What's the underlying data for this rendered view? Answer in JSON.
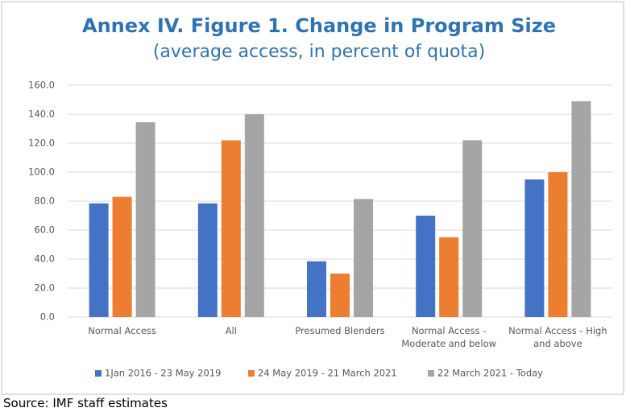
{
  "chart_data": {
    "type": "bar",
    "title": "Annex IV. Figure 1. Change in Program Size",
    "subtitle": "(average access, in percent of quota)",
    "categories": [
      "Normal Access",
      "All",
      "Presumed Blenders",
      "Normal Access - Moderate and below",
      "Normal Access - High and above"
    ],
    "series": [
      {
        "name": "1Jan 2016 - 23 May 2019",
        "color": "#4472c4",
        "values": [
          78.5,
          78.5,
          38.5,
          70,
          95
        ]
      },
      {
        "name": "24 May 2019 - 21 March 2021",
        "color": "#ed7d31",
        "values": [
          83,
          122,
          30,
          55,
          100
        ]
      },
      {
        "name": "22 March 2021 - Today",
        "color": "#a5a5a5",
        "values": [
          134.5,
          140,
          81.5,
          122,
          149
        ]
      }
    ],
    "ylim": [
      0,
      160
    ],
    "yticks": [
      {
        "value": 0,
        "label": "0.0"
      },
      {
        "value": 20,
        "label": "20.0"
      },
      {
        "value": 40,
        "label": "40.0"
      },
      {
        "value": 60,
        "label": "60.0"
      },
      {
        "value": 80,
        "label": "80.0"
      },
      {
        "value": 100,
        "label": "100.0"
      },
      {
        "value": 120,
        "label": "120.0"
      },
      {
        "value": 140,
        "label": "140.0"
      },
      {
        "value": 160,
        "label": "160.0"
      }
    ],
    "grid": true,
    "legend": "bottom",
    "source": "Source: IMF staff estimates"
  }
}
